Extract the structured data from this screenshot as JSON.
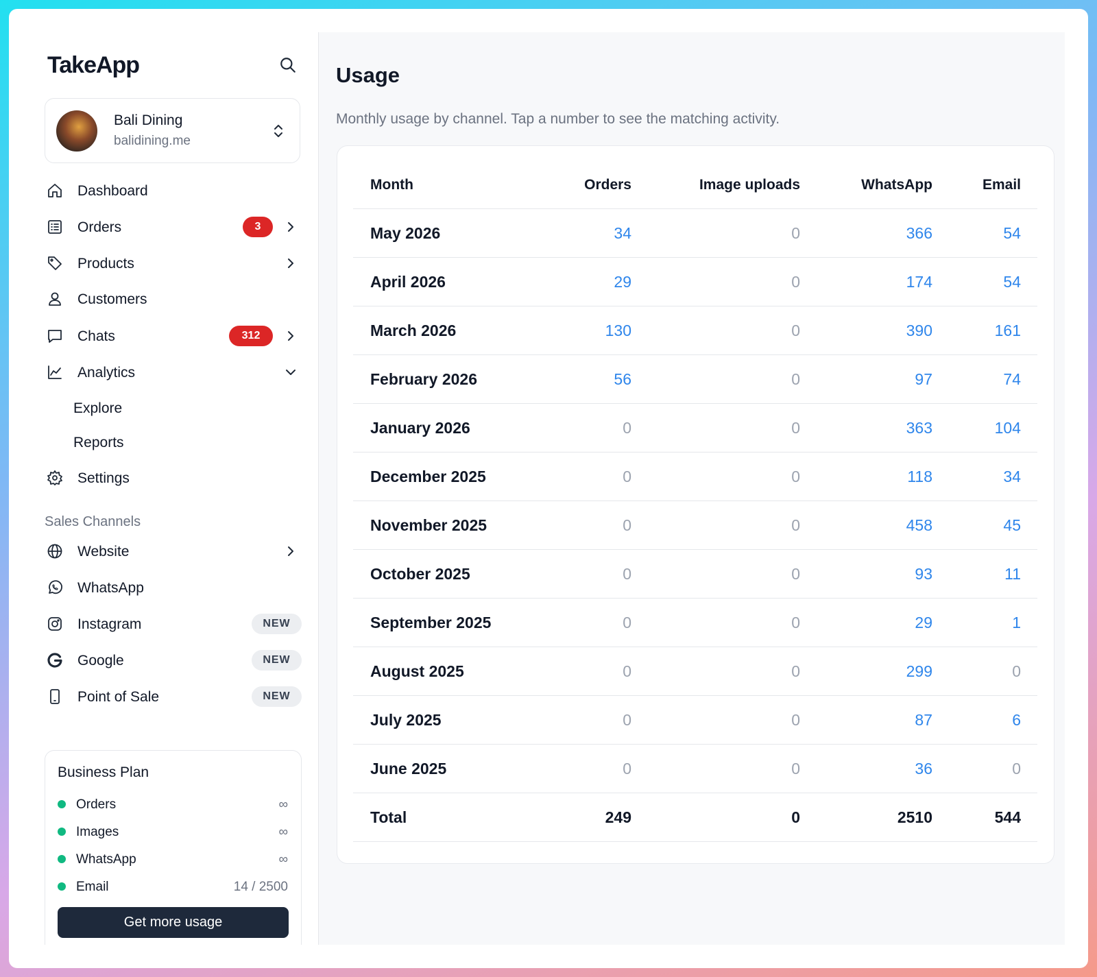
{
  "sidebar": {
    "brand": "TakeApp",
    "store": {
      "name": "Bali Dining",
      "domain": "balidining.me"
    },
    "nav": [
      {
        "label": "Dashboard"
      },
      {
        "label": "Orders",
        "badge": 3
      },
      {
        "label": "Products"
      },
      {
        "label": "Customers"
      },
      {
        "label": "Chats",
        "badge": 312
      },
      {
        "label": "Analytics",
        "children": [
          "Explore",
          "Reports"
        ]
      },
      {
        "label": "Settings"
      }
    ],
    "channels_title": "Sales Channels",
    "channels": [
      {
        "label": "Website"
      },
      {
        "label": "WhatsApp"
      },
      {
        "label": "Instagram",
        "tag": "NEW"
      },
      {
        "label": "Google",
        "tag": "NEW"
      },
      {
        "label": "Point of Sale",
        "tag": "NEW"
      }
    ],
    "plan": {
      "title": "Business Plan",
      "items": [
        {
          "label": "Orders",
          "limit": "∞"
        },
        {
          "label": "Images",
          "limit": "∞"
        },
        {
          "label": "WhatsApp",
          "limit": "∞"
        },
        {
          "label": "Email",
          "limit": "14 / 2500"
        }
      ],
      "button": "Get more usage"
    }
  },
  "main": {
    "title": "Usage",
    "subtitle": "Monthly usage by channel. Tap a number to see the matching activity.",
    "table": {
      "columns": [
        "Month",
        "Orders",
        "Image uploads",
        "WhatsApp",
        "Email"
      ],
      "rows": [
        [
          "May 2026",
          34,
          0,
          366,
          54
        ],
        [
          "April 2026",
          29,
          0,
          174,
          54
        ],
        [
          "March 2026",
          130,
          0,
          390,
          161
        ],
        [
          "February 2026",
          56,
          0,
          97,
          74
        ],
        [
          "January 2026",
          0,
          0,
          363,
          104
        ],
        [
          "December 2025",
          0,
          0,
          118,
          34
        ],
        [
          "November 2025",
          0,
          0,
          458,
          45
        ],
        [
          "October 2025",
          0,
          0,
          93,
          11
        ],
        [
          "September 2025",
          0,
          0,
          29,
          1
        ],
        [
          "August 2025",
          0,
          0,
          299,
          0
        ],
        [
          "July 2025",
          0,
          0,
          87,
          6
        ],
        [
          "June 2025",
          0,
          0,
          36,
          0
        ]
      ],
      "total": [
        "Total",
        249,
        0,
        2510,
        544
      ]
    }
  }
}
